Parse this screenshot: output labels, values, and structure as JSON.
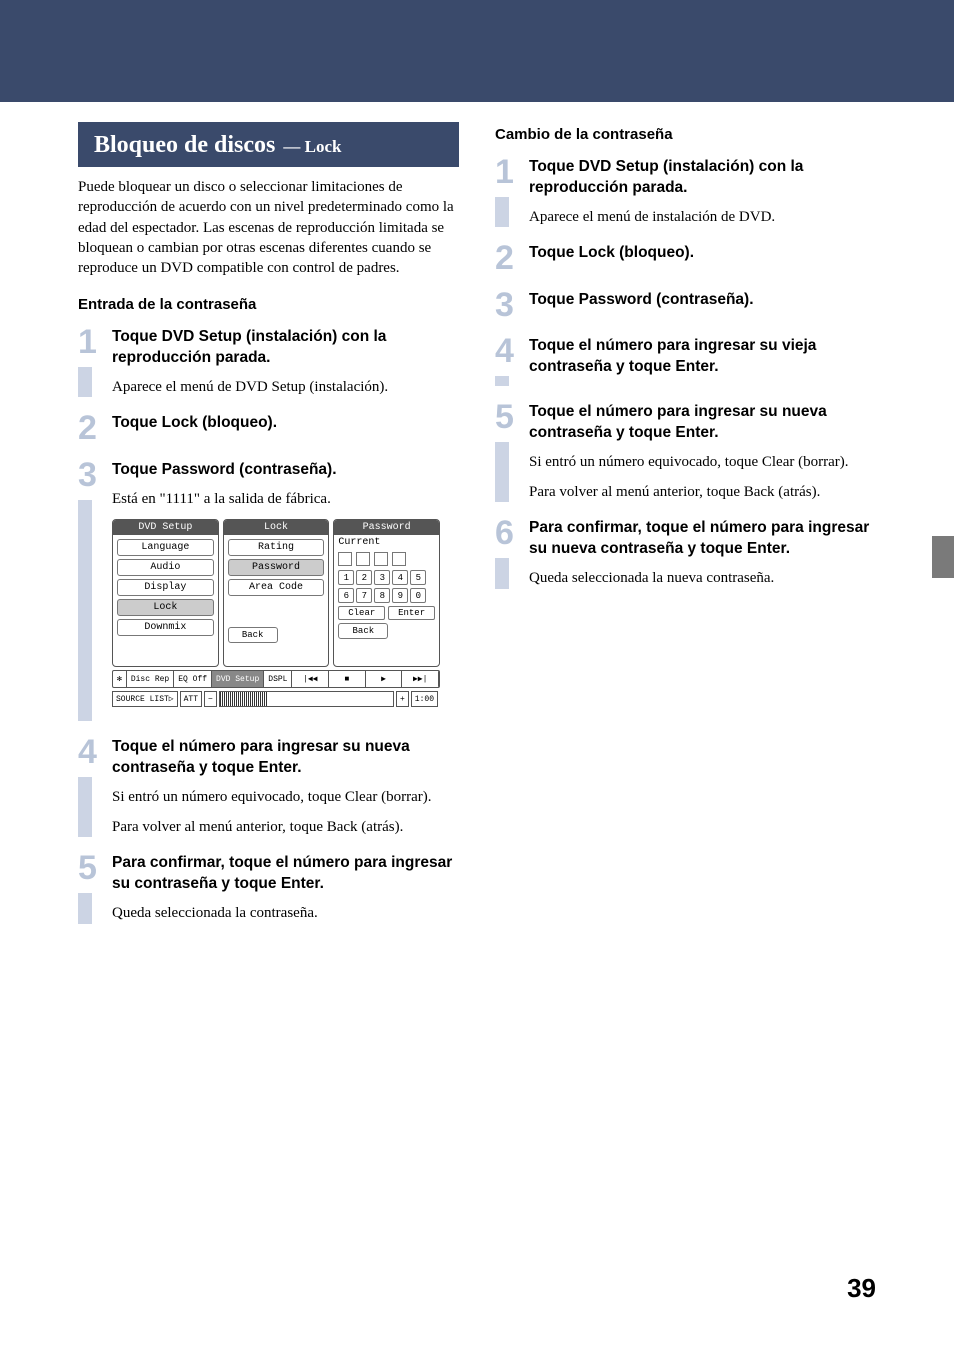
{
  "pageNumber": "39",
  "colors": {
    "band": "#3a4a6b",
    "stepNum": "#b8c4d8",
    "stepBar": "#ccd4e4",
    "sideTab": "#7a7a7a"
  },
  "section": {
    "titleMain": "Bloqueo de discos",
    "titleSub": "— Lock",
    "intro": "Puede bloquear un disco o seleccionar limitaciones de reproducción de acuerdo con un nivel predeterminado como la edad del espectador. Las escenas de reproducción limitada se bloquean o cambian por otras escenas diferentes cuando se reproduce un DVD compatible con control de padres."
  },
  "leftHeading": "Entrada de la contraseña",
  "leftSteps": [
    {
      "num": "1",
      "title": "Toque DVD Setup (instalación) con la reproducción parada.",
      "paras": [
        "Aparece el menú de DVD Setup (instalación)."
      ]
    },
    {
      "num": "2",
      "title": "Toque Lock (bloqueo).",
      "paras": []
    },
    {
      "num": "3",
      "title": "Toque Password (contraseña).",
      "paras": [
        "Está en \"1111\" a la salida de fábrica."
      ]
    },
    {
      "num": "4",
      "title": "Toque el número para ingresar su nueva contraseña y toque Enter.",
      "paras": [
        "Si entró un número equivocado, toque Clear (borrar).",
        "Para volver al menú anterior, toque Back (atrás)."
      ]
    },
    {
      "num": "5",
      "title": "Para confirmar, toque el número para ingresar su contraseña y toque Enter.",
      "paras": [
        "Queda seleccionada la contraseña."
      ]
    }
  ],
  "rightHeading": "Cambio de la contraseña",
  "rightSteps": [
    {
      "num": "1",
      "title": "Toque DVD Setup (instalación) con la reproducción parada.",
      "paras": [
        "Aparece el menú de instalación de DVD."
      ]
    },
    {
      "num": "2",
      "title": "Toque Lock (bloqueo).",
      "paras": []
    },
    {
      "num": "3",
      "title": "Toque Password (contraseña).",
      "paras": []
    },
    {
      "num": "4",
      "title": "Toque el número para ingresar su vieja contraseña y toque Enter.",
      "paras": []
    },
    {
      "num": "5",
      "title": "Toque el número para ingresar su nueva contraseña y toque Enter.",
      "paras": [
        "Si entró un número equivocado, toque Clear (borrar).",
        "Para volver al menú anterior, toque Back (atrás)."
      ]
    },
    {
      "num": "6",
      "title": "Para confirmar, toque el número para ingresar su nueva contraseña y toque Enter.",
      "paras": [
        "Queda seleccionada la nueva contraseña."
      ]
    }
  ],
  "uiMock": {
    "panels": [
      {
        "header": "DVD Setup",
        "items": [
          "Language",
          "Audio",
          "Display",
          "Lock",
          "Downmix"
        ],
        "selectedIndex": 3
      },
      {
        "header": "Lock",
        "items": [
          "Rating",
          "Password",
          "Area Code"
        ],
        "selectedIndex": 1,
        "backLabel": "Back"
      }
    ],
    "passwordPanel": {
      "header": "Password",
      "currentLabel": "Current",
      "numRow1": [
        "1",
        "2",
        "3",
        "4",
        "5"
      ],
      "numRow2": [
        "6",
        "7",
        "8",
        "9",
        "0"
      ],
      "clearLabel": "Clear",
      "enterLabel": "Enter",
      "backLabel": "Back"
    },
    "bottomBar": {
      "cells": [
        "",
        "Disc Rep",
        "EQ Off",
        "DVD Setup",
        "DSPL"
      ],
      "selectedIndex": 3,
      "transport": [
        "|◀◀",
        "■",
        "▶",
        "▶▶|"
      ]
    },
    "sourceBar": {
      "sourceList": "SOURCE LIST▷",
      "att": "ATT",
      "minus": "−",
      "plus": "+",
      "time": "1:00"
    }
  }
}
